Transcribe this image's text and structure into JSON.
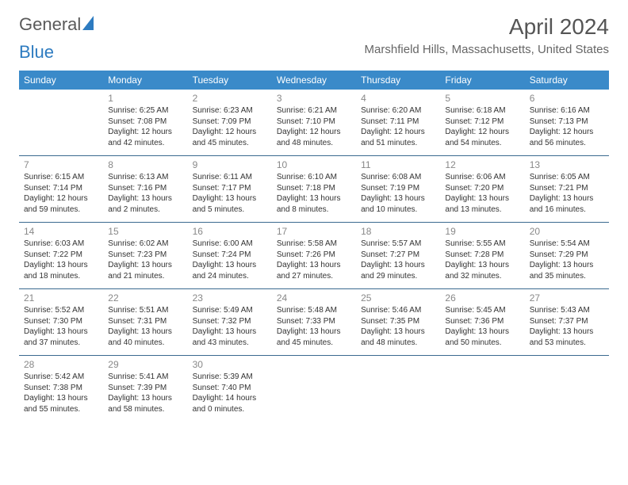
{
  "logo": {
    "part1": "General",
    "part2": "Blue"
  },
  "title": "April 2024",
  "location": "Marshfield Hills, Massachusetts, United States",
  "headers": [
    "Sunday",
    "Monday",
    "Tuesday",
    "Wednesday",
    "Thursday",
    "Friday",
    "Saturday"
  ],
  "style": {
    "header_bg": "#3a8ac9",
    "header_text": "#ffffff",
    "row_border": "#3a6a8f",
    "daynum_color": "#888888",
    "text_color": "#333333",
    "title_color": "#555555",
    "location_color": "#666666"
  },
  "weeks": [
    [
      null,
      {
        "n": "1",
        "sr": "Sunrise: 6:25 AM",
        "ss": "Sunset: 7:08 PM",
        "d1": "Daylight: 12 hours",
        "d2": "and 42 minutes."
      },
      {
        "n": "2",
        "sr": "Sunrise: 6:23 AM",
        "ss": "Sunset: 7:09 PM",
        "d1": "Daylight: 12 hours",
        "d2": "and 45 minutes."
      },
      {
        "n": "3",
        "sr": "Sunrise: 6:21 AM",
        "ss": "Sunset: 7:10 PM",
        "d1": "Daylight: 12 hours",
        "d2": "and 48 minutes."
      },
      {
        "n": "4",
        "sr": "Sunrise: 6:20 AM",
        "ss": "Sunset: 7:11 PM",
        "d1": "Daylight: 12 hours",
        "d2": "and 51 minutes."
      },
      {
        "n": "5",
        "sr": "Sunrise: 6:18 AM",
        "ss": "Sunset: 7:12 PM",
        "d1": "Daylight: 12 hours",
        "d2": "and 54 minutes."
      },
      {
        "n": "6",
        "sr": "Sunrise: 6:16 AM",
        "ss": "Sunset: 7:13 PM",
        "d1": "Daylight: 12 hours",
        "d2": "and 56 minutes."
      }
    ],
    [
      {
        "n": "7",
        "sr": "Sunrise: 6:15 AM",
        "ss": "Sunset: 7:14 PM",
        "d1": "Daylight: 12 hours",
        "d2": "and 59 minutes."
      },
      {
        "n": "8",
        "sr": "Sunrise: 6:13 AM",
        "ss": "Sunset: 7:16 PM",
        "d1": "Daylight: 13 hours",
        "d2": "and 2 minutes."
      },
      {
        "n": "9",
        "sr": "Sunrise: 6:11 AM",
        "ss": "Sunset: 7:17 PM",
        "d1": "Daylight: 13 hours",
        "d2": "and 5 minutes."
      },
      {
        "n": "10",
        "sr": "Sunrise: 6:10 AM",
        "ss": "Sunset: 7:18 PM",
        "d1": "Daylight: 13 hours",
        "d2": "and 8 minutes."
      },
      {
        "n": "11",
        "sr": "Sunrise: 6:08 AM",
        "ss": "Sunset: 7:19 PM",
        "d1": "Daylight: 13 hours",
        "d2": "and 10 minutes."
      },
      {
        "n": "12",
        "sr": "Sunrise: 6:06 AM",
        "ss": "Sunset: 7:20 PM",
        "d1": "Daylight: 13 hours",
        "d2": "and 13 minutes."
      },
      {
        "n": "13",
        "sr": "Sunrise: 6:05 AM",
        "ss": "Sunset: 7:21 PM",
        "d1": "Daylight: 13 hours",
        "d2": "and 16 minutes."
      }
    ],
    [
      {
        "n": "14",
        "sr": "Sunrise: 6:03 AM",
        "ss": "Sunset: 7:22 PM",
        "d1": "Daylight: 13 hours",
        "d2": "and 18 minutes."
      },
      {
        "n": "15",
        "sr": "Sunrise: 6:02 AM",
        "ss": "Sunset: 7:23 PM",
        "d1": "Daylight: 13 hours",
        "d2": "and 21 minutes."
      },
      {
        "n": "16",
        "sr": "Sunrise: 6:00 AM",
        "ss": "Sunset: 7:24 PM",
        "d1": "Daylight: 13 hours",
        "d2": "and 24 minutes."
      },
      {
        "n": "17",
        "sr": "Sunrise: 5:58 AM",
        "ss": "Sunset: 7:26 PM",
        "d1": "Daylight: 13 hours",
        "d2": "and 27 minutes."
      },
      {
        "n": "18",
        "sr": "Sunrise: 5:57 AM",
        "ss": "Sunset: 7:27 PM",
        "d1": "Daylight: 13 hours",
        "d2": "and 29 minutes."
      },
      {
        "n": "19",
        "sr": "Sunrise: 5:55 AM",
        "ss": "Sunset: 7:28 PM",
        "d1": "Daylight: 13 hours",
        "d2": "and 32 minutes."
      },
      {
        "n": "20",
        "sr": "Sunrise: 5:54 AM",
        "ss": "Sunset: 7:29 PM",
        "d1": "Daylight: 13 hours",
        "d2": "and 35 minutes."
      }
    ],
    [
      {
        "n": "21",
        "sr": "Sunrise: 5:52 AM",
        "ss": "Sunset: 7:30 PM",
        "d1": "Daylight: 13 hours",
        "d2": "and 37 minutes."
      },
      {
        "n": "22",
        "sr": "Sunrise: 5:51 AM",
        "ss": "Sunset: 7:31 PM",
        "d1": "Daylight: 13 hours",
        "d2": "and 40 minutes."
      },
      {
        "n": "23",
        "sr": "Sunrise: 5:49 AM",
        "ss": "Sunset: 7:32 PM",
        "d1": "Daylight: 13 hours",
        "d2": "and 43 minutes."
      },
      {
        "n": "24",
        "sr": "Sunrise: 5:48 AM",
        "ss": "Sunset: 7:33 PM",
        "d1": "Daylight: 13 hours",
        "d2": "and 45 minutes."
      },
      {
        "n": "25",
        "sr": "Sunrise: 5:46 AM",
        "ss": "Sunset: 7:35 PM",
        "d1": "Daylight: 13 hours",
        "d2": "and 48 minutes."
      },
      {
        "n": "26",
        "sr": "Sunrise: 5:45 AM",
        "ss": "Sunset: 7:36 PM",
        "d1": "Daylight: 13 hours",
        "d2": "and 50 minutes."
      },
      {
        "n": "27",
        "sr": "Sunrise: 5:43 AM",
        "ss": "Sunset: 7:37 PM",
        "d1": "Daylight: 13 hours",
        "d2": "and 53 minutes."
      }
    ],
    [
      {
        "n": "28",
        "sr": "Sunrise: 5:42 AM",
        "ss": "Sunset: 7:38 PM",
        "d1": "Daylight: 13 hours",
        "d2": "and 55 minutes."
      },
      {
        "n": "29",
        "sr": "Sunrise: 5:41 AM",
        "ss": "Sunset: 7:39 PM",
        "d1": "Daylight: 13 hours",
        "d2": "and 58 minutes."
      },
      {
        "n": "30",
        "sr": "Sunrise: 5:39 AM",
        "ss": "Sunset: 7:40 PM",
        "d1": "Daylight: 14 hours",
        "d2": "and 0 minutes."
      },
      null,
      null,
      null,
      null
    ]
  ]
}
